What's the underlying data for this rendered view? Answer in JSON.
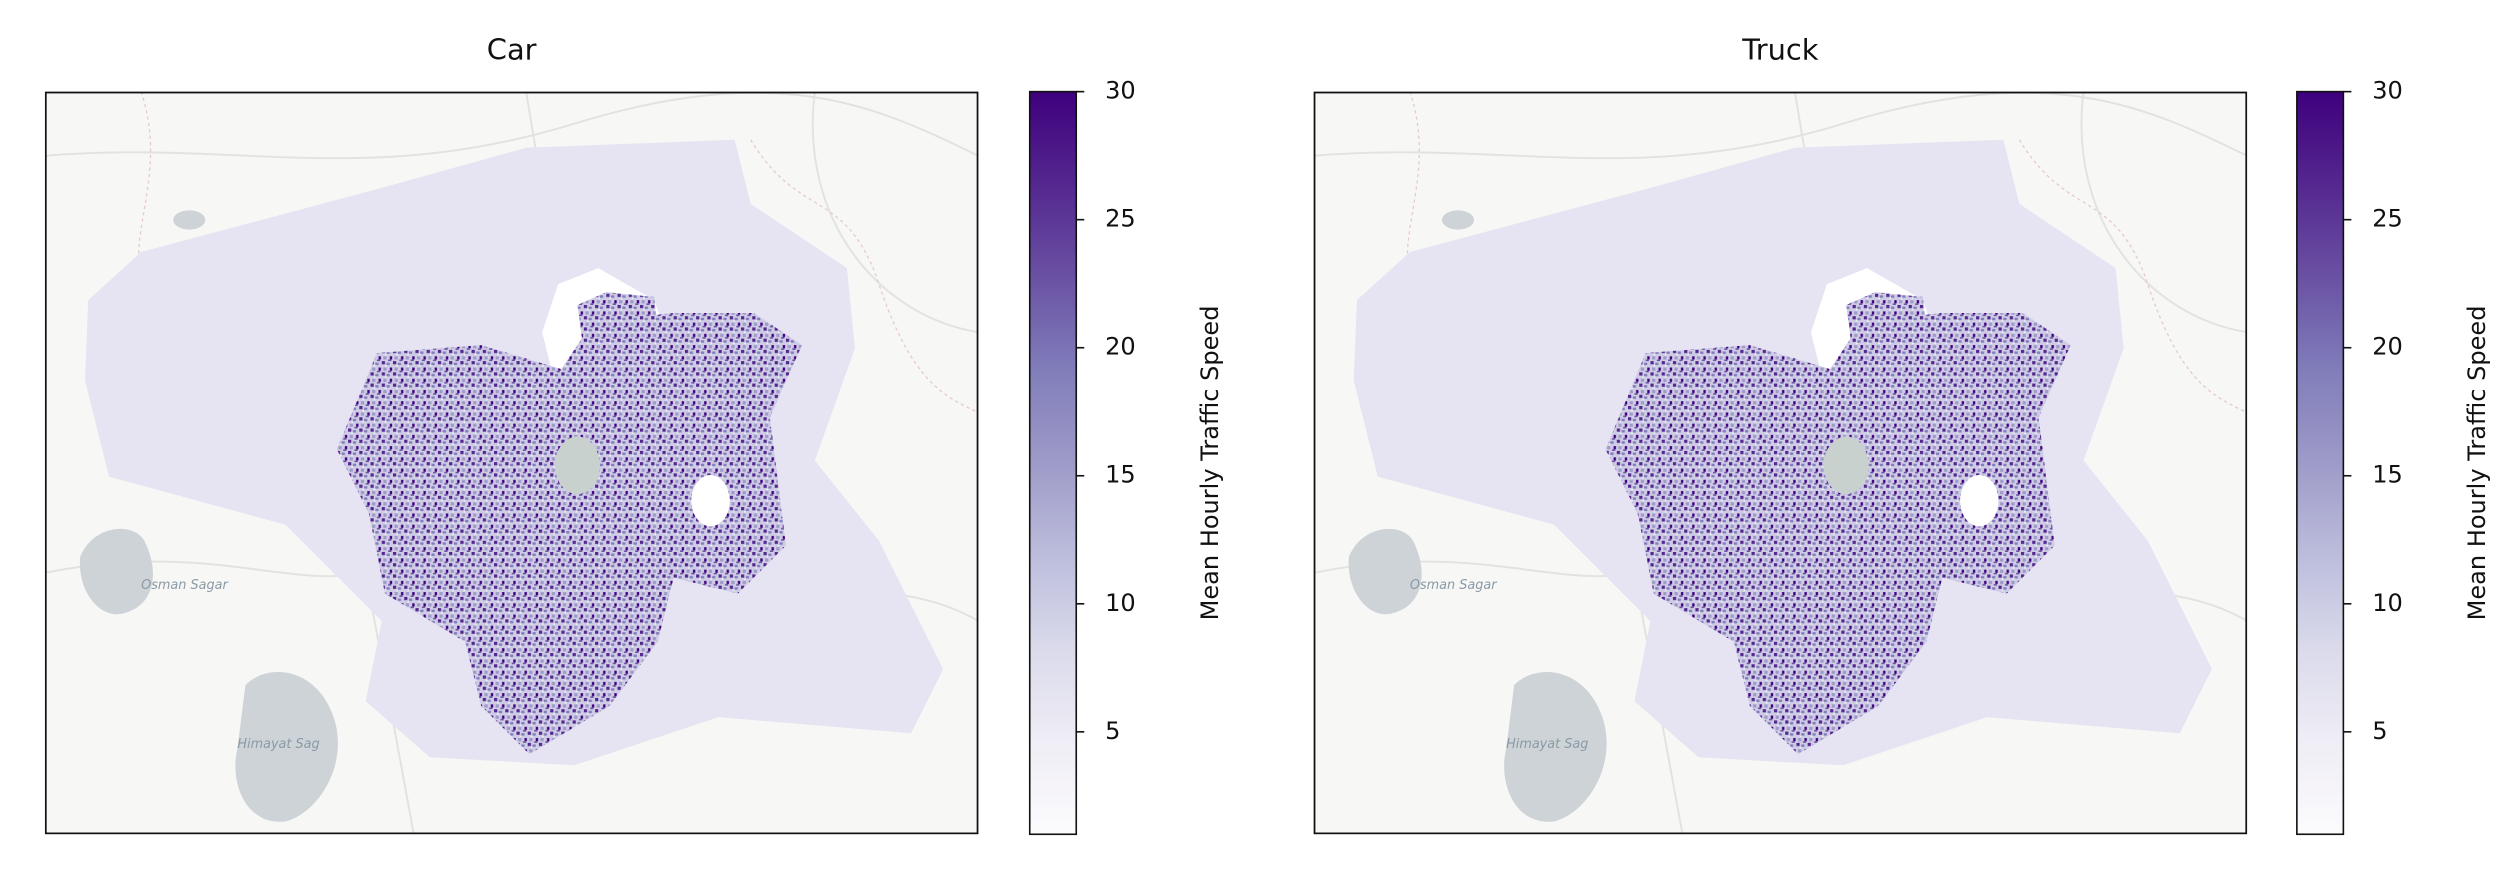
{
  "chart_data": [
    {
      "type": "map",
      "title": "Car",
      "colorbar": {
        "label": "Mean Hourly Traffic Speed",
        "lim": [
          1,
          30
        ],
        "ticks": [
          5,
          10,
          15,
          20,
          25,
          30
        ],
        "colormap": "Purples"
      },
      "map_labels": [
        "Osman Sagar",
        "Himayat Sag"
      ]
    },
    {
      "type": "map",
      "title": "Truck",
      "colorbar": {
        "label": "Mean Hourly Traffic Speed",
        "lim": [
          1,
          30
        ],
        "ticks": [
          5,
          10,
          15,
          20,
          25,
          30
        ],
        "colormap": "Purples"
      },
      "map_labels": [
        "Osman Sagar",
        "Himayat Sag"
      ]
    }
  ]
}
